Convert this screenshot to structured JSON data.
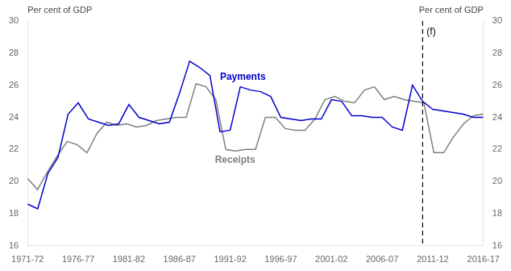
{
  "chart_data": {
    "type": "line",
    "ylabel": "Per cent of GDP",
    "y2label": "Per cent of GDP",
    "xlim": [
      0,
      45
    ],
    "xticks": [
      {
        "value": 0,
        "label": "1971-72"
      },
      {
        "value": 5,
        "label": "1976-77"
      },
      {
        "value": 10,
        "label": "1981-82"
      },
      {
        "value": 15,
        "label": "1986-87"
      },
      {
        "value": 20,
        "label": "1991-92"
      },
      {
        "value": 25,
        "label": "1996-97"
      },
      {
        "value": 30,
        "label": "2001-02"
      },
      {
        "value": 35,
        "label": "2006-07"
      },
      {
        "value": 40,
        "label": "2011-12"
      },
      {
        "value": 45,
        "label": "2016-17"
      }
    ],
    "ylim": [
      16,
      30
    ],
    "yticks": [
      16,
      18,
      20,
      22,
      24,
      26,
      28,
      30
    ],
    "y2lim": [
      16,
      30
    ],
    "y2ticks": [
      16,
      18,
      20,
      22,
      24,
      26,
      28,
      30
    ],
    "grid": false,
    "series": [
      {
        "name": "Payments",
        "color": "#0000cc",
        "x": [
          0,
          1,
          2,
          3,
          4,
          5,
          6,
          7,
          8,
          9,
          10,
          11,
          12,
          13,
          14,
          15,
          16,
          17,
          18,
          19,
          20,
          21,
          22,
          23,
          24,
          25,
          26,
          27,
          28,
          29,
          30,
          31,
          32,
          33,
          34,
          35,
          36,
          37,
          38,
          39,
          40,
          41,
          42,
          43,
          44,
          45
        ],
        "values": [
          18.6,
          18.3,
          20.5,
          21.5,
          24.2,
          24.9,
          23.9,
          23.7,
          23.5,
          23.6,
          24.8,
          24.0,
          23.8,
          23.6,
          23.7,
          25.5,
          27.5,
          27.1,
          26.6,
          23.1,
          23.2,
          25.9,
          25.7,
          25.6,
          25.3,
          24.0,
          23.9,
          23.8,
          23.9,
          23.9,
          25.1,
          25.0,
          24.1,
          24.1,
          24.0,
          24.0,
          23.4,
          23.2,
          26.0,
          25.0,
          24.5,
          24.4,
          24.3,
          24.2,
          24.0,
          24.0
        ]
      },
      {
        "name": "Receipts",
        "color": "#808080",
        "x": [
          0,
          0.978261,
          1.956522,
          2.934783,
          3.913043,
          4.891304,
          5.869565,
          6.847826,
          7.826087,
          8.804348,
          9.782609,
          10.76087,
          11.73913,
          12.717391,
          13.695652,
          14.673913,
          15.652174,
          16.630435,
          17.608696,
          18.586957,
          19.565217,
          20.543478,
          21.521739,
          22.5,
          23.478261,
          24.456522,
          25.434783,
          26.413043,
          27.391304,
          28.369565,
          29.347826,
          30.326087,
          31.304348,
          32.282609,
          33.26087,
          34.23913,
          35.217391,
          36.195652,
          37.173913,
          38.152174,
          39.130435,
          40.108696,
          41.086957,
          42.065217,
          43.043478,
          44.021739,
          45
        ],
        "values": [
          20.2,
          19.5,
          20.6,
          21.6,
          22.5,
          22.3,
          21.8,
          23.0,
          23.7,
          23.5,
          23.6,
          23.4,
          23.5,
          23.8,
          23.9,
          24.0,
          24.0,
          26.1,
          25.9,
          25.1,
          22.0,
          21.9,
          22.0,
          22.0,
          24.0,
          24.0,
          23.3,
          23.2,
          23.2,
          23.9,
          25.1,
          25.3,
          25.0,
          24.9,
          25.7,
          25.9,
          25.1,
          25.3,
          25.1,
          25.0,
          24.9,
          21.8,
          21.8,
          22.8,
          23.6,
          24.1,
          24.2
        ]
      }
    ],
    "vlines": [
      {
        "x": 39,
        "line_style": "dashed",
        "color": "#000000",
        "label": "(f)"
      }
    ]
  }
}
